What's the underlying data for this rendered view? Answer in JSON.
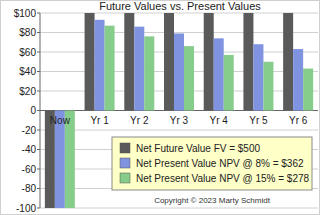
{
  "chart_data": {
    "type": "bar",
    "title": "Future Values vs. Present Values",
    "categories": [
      "Now",
      "Yr 1",
      "Yr 2",
      "Yr 3",
      "Yr 4",
      "Yr 5",
      "Yr 6"
    ],
    "series": [
      {
        "name": "Net Future Value FV = $500",
        "color": "#5a5a5a",
        "values": [
          -100,
          100,
          100,
          100,
          100,
          100,
          100
        ]
      },
      {
        "name": "Net Present Value NPV @ 8% = $362",
        "color": "#7f93e0",
        "values": [
          -100,
          93,
          86,
          79,
          74,
          68,
          63
        ]
      },
      {
        "name": "Net Present Value NPV @ 15% = $278",
        "color": "#86cc8a",
        "values": [
          -100,
          87,
          76,
          66,
          57,
          50,
          43
        ]
      }
    ],
    "ylim": [
      -100,
      100
    ],
    "yticks": [
      -100,
      -80,
      -60,
      -40,
      -20,
      0,
      {
        "value": 20,
        "label": "$20"
      },
      {
        "value": 40,
        "label": "$40"
      },
      {
        "value": 60,
        "label": "$60"
      },
      {
        "value": 80,
        "label": "$80"
      },
      {
        "value": 100,
        "label": "$100"
      }
    ],
    "grid": true,
    "legend": "lower right",
    "annotations": [
      "Copyright © 2023  Marty Schmidt"
    ]
  }
}
